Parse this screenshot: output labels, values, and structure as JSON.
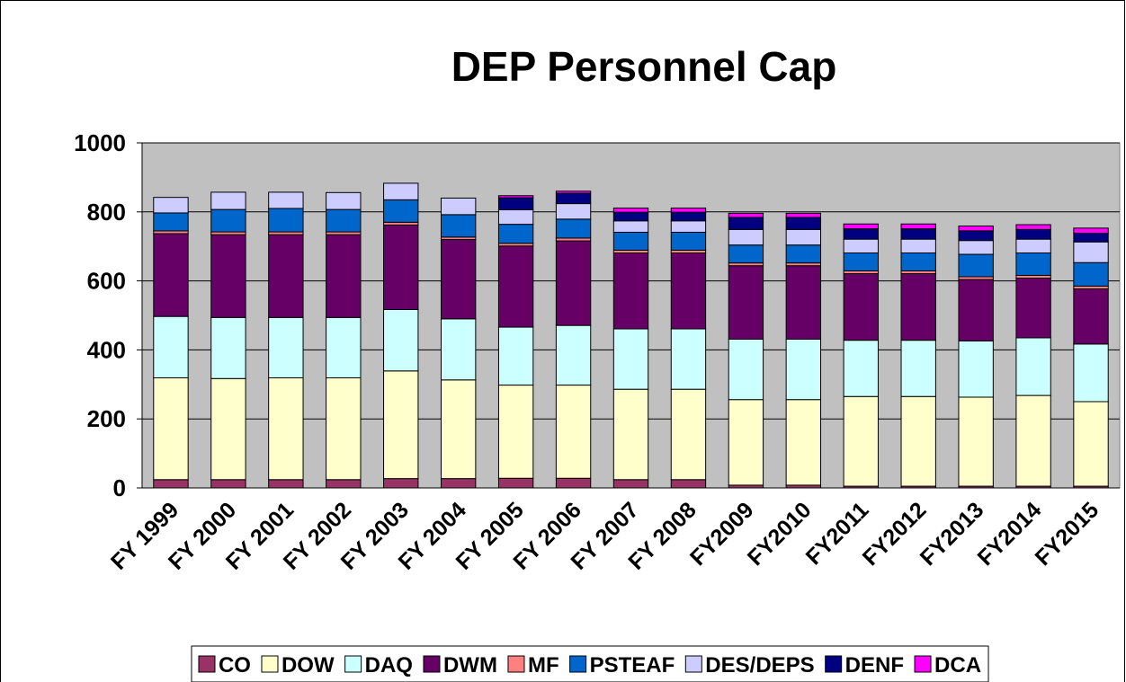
{
  "chart_data": {
    "type": "stacked_bar",
    "title": "DEP Personnel Cap",
    "categories": [
      "FY 1999",
      "FY 2000",
      "FY 2001",
      "FY 2002",
      "FY 2003",
      "FY 2004",
      "FY 2005",
      "FY 2006",
      "FY 2007",
      "FY 2008",
      "FY2009",
      "FY2010",
      "FY2011",
      "FY2012",
      "FY2013",
      "FY2014",
      "FY2015"
    ],
    "series": [
      {
        "name": "CO",
        "color": "#993366",
        "values": [
          24,
          24,
          24,
          24,
          27,
          27,
          28,
          28,
          24,
          24,
          8,
          8,
          5,
          5,
          5,
          5,
          5
        ]
      },
      {
        "name": "DOW",
        "color": "#ffffcc",
        "values": [
          295,
          293,
          295,
          295,
          312,
          286,
          270,
          270,
          262,
          262,
          248,
          248,
          260,
          260,
          258,
          263,
          245
        ]
      },
      {
        "name": "DAQ",
        "color": "#ccffff",
        "values": [
          178,
          177,
          175,
          175,
          178,
          177,
          168,
          173,
          175,
          175,
          175,
          175,
          163,
          163,
          163,
          167,
          167
        ]
      },
      {
        "name": "DWM",
        "color": "#660066",
        "values": [
          240,
          240,
          240,
          240,
          245,
          230,
          235,
          245,
          220,
          220,
          213,
          213,
          193,
          193,
          178,
          173,
          160
        ]
      },
      {
        "name": "MF",
        "color": "#ff8080",
        "values": [
          8,
          8,
          8,
          8,
          8,
          7,
          8,
          8,
          8,
          8,
          8,
          8,
          8,
          8,
          8,
          8,
          8
        ]
      },
      {
        "name": "PSTEAF",
        "color": "#0066cc",
        "values": [
          52,
          65,
          68,
          65,
          65,
          65,
          55,
          55,
          52,
          52,
          52,
          52,
          52,
          52,
          65,
          65,
          68
        ]
      },
      {
        "name": "DES/DEPS",
        "color": "#ccccff",
        "values": [
          45,
          50,
          47,
          49,
          48,
          48,
          42,
          45,
          33,
          33,
          45,
          45,
          40,
          40,
          40,
          40,
          60
        ]
      },
      {
        "name": "DENF",
        "color": "#000080",
        "values": [
          0,
          0,
          0,
          0,
          0,
          0,
          35,
          30,
          25,
          25,
          35,
          35,
          30,
          30,
          28,
          28,
          25
        ]
      },
      {
        "name": "DCA",
        "color": "#ff00ff",
        "values": [
          0,
          0,
          0,
          0,
          0,
          0,
          6,
          6,
          12,
          12,
          12,
          12,
          14,
          14,
          14,
          14,
          15
        ]
      }
    ],
    "ylim": [
      0,
      1000
    ],
    "yticks": [
      0,
      200,
      400,
      600,
      800,
      1000
    ],
    "grid": true,
    "legend": "bottom"
  }
}
